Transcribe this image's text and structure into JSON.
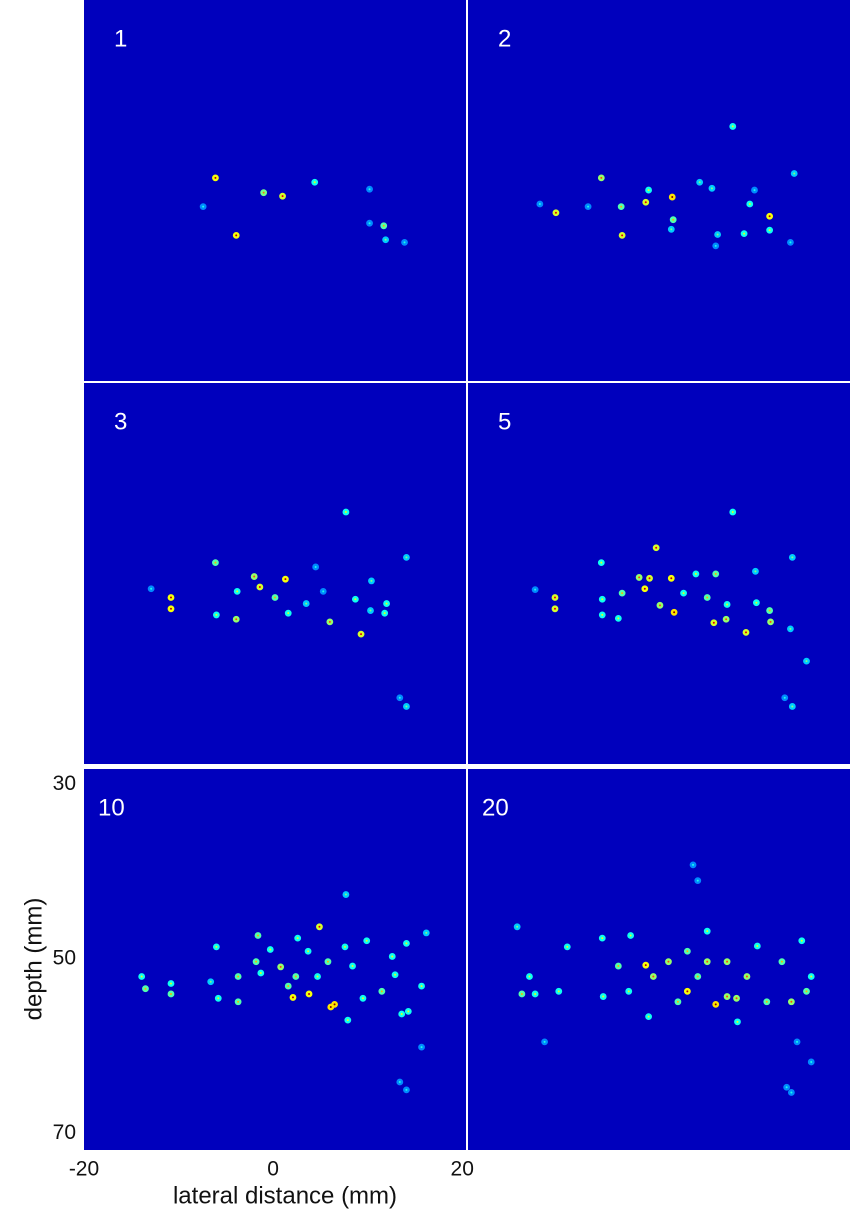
{
  "chart_data": [
    {
      "type": "scatter",
      "title": "1",
      "colormap": "jet",
      "xlim": [
        -20,
        20.4
      ],
      "ylim": [
        28.2,
        71.9
      ],
      "x": [
        -6.1,
        -1.0,
        1.0,
        4.4,
        -7.4,
        -3.9,
        10.2,
        10.2,
        11.7,
        11.9,
        13.9
      ],
      "y": [
        48.6,
        50.3,
        50.7,
        49.1,
        51.9,
        55.2,
        49.9,
        53.8,
        54.1,
        55.7,
        56.0
      ],
      "intensity": [
        0.95,
        0.75,
        0.9,
        0.6,
        0.4,
        0.95,
        0.4,
        0.4,
        0.7,
        0.5,
        0.4
      ]
    },
    {
      "type": "scatter",
      "title": "2",
      "colormap": "jet",
      "xlim": [
        -20,
        20.4
      ],
      "ylim": [
        28.2,
        71.9
      ],
      "x": [
        8.0,
        -5.9,
        -10.7,
        -3.8,
        -1.2,
        1.6,
        -0.9,
        4.5,
        5.8,
        10.3,
        14.5,
        9.8,
        11.9,
        -3.7,
        1.5,
        1.7,
        6.4,
        9.2,
        11.9,
        14.1,
        6.2,
        -12.4,
        -7.3
      ],
      "y": [
        42.7,
        48.6,
        52.6,
        51.9,
        51.4,
        50.8,
        50.0,
        49.1,
        49.8,
        50.0,
        48.1,
        51.6,
        53.0,
        55.2,
        54.5,
        53.4,
        55.1,
        55.0,
        54.6,
        56.0,
        56.4,
        51.6,
        51.9
      ],
      "intensity": [
        0.6,
        0.8,
        0.9,
        0.7,
        0.9,
        1.0,
        0.6,
        0.5,
        0.5,
        0.4,
        0.5,
        0.6,
        0.95,
        0.9,
        0.5,
        0.7,
        0.5,
        0.6,
        0.6,
        0.4,
        0.4,
        0.4,
        0.4
      ]
    },
    {
      "type": "scatter",
      "title": "3",
      "colormap": "jet",
      "xlim": [
        -20,
        20.4
      ],
      "ylim": [
        28.2,
        71.9
      ],
      "x": [
        7.7,
        14.1,
        -6.1,
        -2.0,
        1.3,
        -1.4,
        0.2,
        -3.8,
        -10.8,
        -10.8,
        -12.9,
        -6.0,
        -3.9,
        1.6,
        3.5,
        6.0,
        9.3,
        8.7,
        10.3,
        12.0,
        11.8,
        10.4,
        4.5,
        13.4,
        14.1,
        5.3
      ],
      "y": [
        43.0,
        48.2,
        48.8,
        50.4,
        50.7,
        51.6,
        52.8,
        52.1,
        52.8,
        54.1,
        51.8,
        54.8,
        55.3,
        54.6,
        53.5,
        55.6,
        57.0,
        53.0,
        54.3,
        53.5,
        54.6,
        50.9,
        49.3,
        64.3,
        65.3,
        52.1
      ],
      "intensity": [
        0.6,
        0.5,
        0.7,
        0.8,
        0.95,
        0.9,
        0.7,
        0.6,
        0.95,
        0.95,
        0.4,
        0.6,
        0.8,
        0.6,
        0.5,
        0.8,
        0.9,
        0.6,
        0.5,
        0.6,
        0.6,
        0.5,
        0.4,
        0.4,
        0.5,
        0.4
      ]
    },
    {
      "type": "scatter",
      "title": "5",
      "colormap": "jet",
      "xlim": [
        -20,
        20.4
      ],
      "ylim": [
        28.2,
        71.9
      ],
      "x": [
        8.0,
        -0.1,
        -5.9,
        -1.9,
        -0.8,
        1.5,
        4.1,
        6.2,
        14.3,
        -1.3,
        -10.8,
        -10.8,
        -12.9,
        -5.8,
        -5.8,
        -3.7,
        0.3,
        1.8,
        5.3,
        7.4,
        10.5,
        11.9,
        6.0,
        7.3,
        9.4,
        12.0,
        14.1,
        15.8,
        13.5,
        14.3,
        2.8,
        10.4,
        -4.1
      ],
      "y": [
        43.0,
        47.1,
        48.8,
        50.5,
        50.6,
        50.6,
        50.1,
        50.1,
        48.2,
        51.8,
        52.8,
        54.1,
        51.9,
        53.0,
        54.8,
        52.3,
        53.7,
        54.5,
        52.8,
        53.6,
        53.4,
        54.3,
        55.7,
        55.3,
        56.8,
        55.6,
        56.4,
        60.1,
        64.3,
        65.3,
        52.3,
        49.8,
        55.2
      ],
      "intensity": [
        0.6,
        0.9,
        0.6,
        0.8,
        0.9,
        0.95,
        0.6,
        0.7,
        0.5,
        0.95,
        0.9,
        0.9,
        0.4,
        0.6,
        0.6,
        0.7,
        0.8,
        1.0,
        0.7,
        0.6,
        0.6,
        0.7,
        0.9,
        0.8,
        0.9,
        0.8,
        0.5,
        0.5,
        0.4,
        0.5,
        0.6,
        0.5,
        0.6
      ]
    },
    {
      "type": "scatter",
      "title": "10",
      "colormap": "jet",
      "xlim": [
        -20,
        20.4
      ],
      "ylim": [
        28.2,
        71.9
      ],
      "xlabel": "lateral distance (mm)",
      "ylabel": "depth (mm)",
      "xticks": [
        -20,
        0,
        20
      ],
      "yticks": [
        30,
        50,
        70
      ],
      "x": [
        4.9,
        7.7,
        -6.0,
        -1.6,
        2.6,
        -0.3,
        0.8,
        2.1,
        1.6,
        3.8,
        6.1,
        6.5,
        -1.8,
        -3.7,
        -3.7,
        -5.8,
        -13.9,
        -13.5,
        -10.8,
        -10.8,
        5.8,
        8.4,
        9.9,
        12.6,
        14.1,
        16.2,
        11.5,
        13.6,
        14.3,
        15.7,
        7.9,
        9.5,
        12.9,
        4.7,
        2.4,
        15.7,
        13.4,
        14.1,
        7.6,
        -6.6,
        3.7,
        -1.3
      ],
      "y": [
        46.3,
        42.6,
        48.6,
        47.3,
        47.6,
        48.9,
        50.9,
        54.4,
        53.1,
        54.0,
        55.5,
        55.2,
        50.3,
        52.0,
        54.9,
        54.5,
        52.0,
        53.4,
        52.8,
        54.0,
        50.3,
        50.8,
        47.9,
        49.7,
        48.2,
        47.0,
        53.7,
        56.3,
        56.0,
        53.1,
        57.0,
        54.5,
        51.8,
        52.0,
        52.0,
        60.1,
        64.1,
        65.0,
        48.6,
        52.6,
        49.1,
        51.6
      ],
      "intensity": [
        0.9,
        0.5,
        0.6,
        0.7,
        0.6,
        0.6,
        0.8,
        0.95,
        0.7,
        0.95,
        1.0,
        1.0,
        0.7,
        0.7,
        0.7,
        0.6,
        0.6,
        0.7,
        0.6,
        0.7,
        0.7,
        0.6,
        0.6,
        0.6,
        0.6,
        0.5,
        0.7,
        0.6,
        0.6,
        0.6,
        0.6,
        0.6,
        0.6,
        0.6,
        0.7,
        0.4,
        0.4,
        0.4,
        0.6,
        0.5,
        0.6,
        0.6
      ]
    },
    {
      "type": "scatter",
      "title": "20",
      "colormap": "jet",
      "xlim": [
        -20,
        20.4
      ],
      "ylim": [
        28.2,
        71.9
      ],
      "x": [
        -14.8,
        -9.5,
        -5.8,
        -2.8,
        -1.2,
        -0.4,
        3.2,
        6.2,
        7.4,
        8.4,
        3.2,
        5.3,
        7.4,
        10.6,
        13.2,
        15.8,
        16.3,
        14.2,
        11.6,
        9.5,
        4.3,
        1.2,
        -4.1,
        -5.7,
        -10.4,
        -12.9,
        -13.5,
        -14.3,
        3.8,
        4.3,
        14.8,
        16.3,
        13.7,
        14.2,
        -11.9,
        -0.9,
        8.5,
        2.2,
        -3.0,
        5.3,
        15.3
      ],
      "y": [
        46.3,
        48.6,
        47.6,
        47.3,
        50.7,
        52.0,
        53.7,
        55.2,
        54.3,
        54.5,
        49.1,
        46.8,
        50.3,
        48.5,
        50.3,
        53.7,
        52.0,
        54.9,
        54.9,
        52.0,
        52.0,
        50.3,
        50.8,
        54.3,
        53.7,
        54.0,
        52.0,
        54.0,
        39.2,
        41.0,
        59.5,
        61.8,
        64.7,
        65.3,
        59.5,
        56.6,
        57.2,
        54.9,
        53.7,
        50.3,
        47.9
      ],
      "intensity": [
        0.5,
        0.6,
        0.6,
        0.6,
        0.95,
        0.8,
        0.95,
        1.0,
        0.8,
        0.8,
        0.7,
        0.6,
        0.8,
        0.6,
        0.7,
        0.7,
        0.6,
        0.8,
        0.7,
        0.8,
        0.7,
        0.8,
        0.7,
        0.6,
        0.6,
        0.6,
        0.6,
        0.7,
        0.4,
        0.4,
        0.4,
        0.4,
        0.4,
        0.4,
        0.4,
        0.6,
        0.6,
        0.7,
        0.6,
        0.8,
        0.6
      ]
    }
  ]
}
